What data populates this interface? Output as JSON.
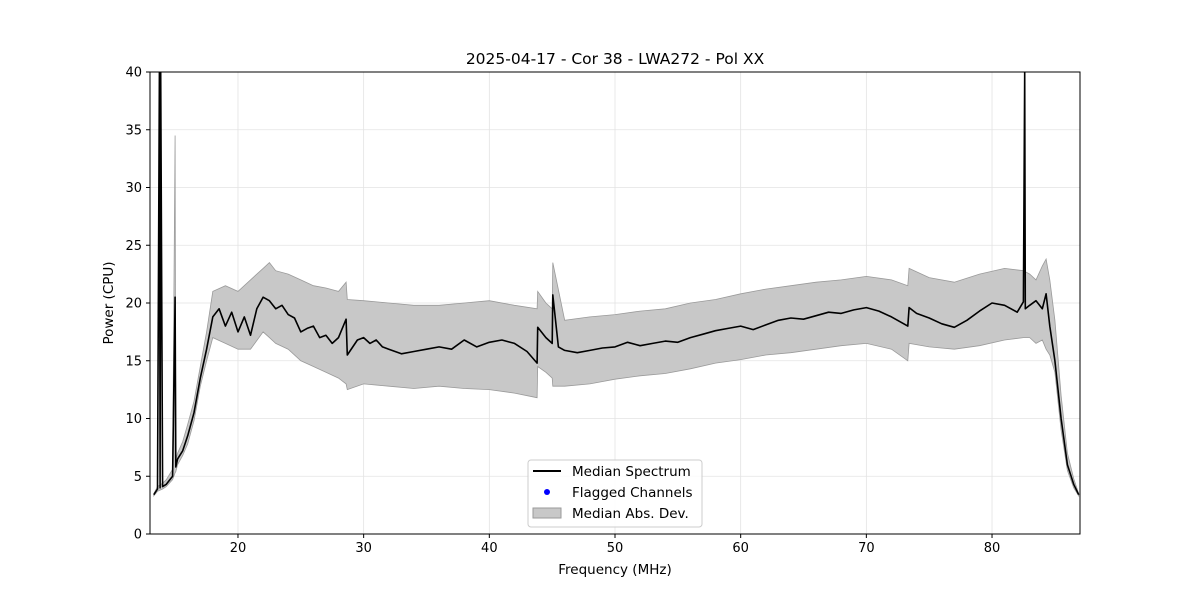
{
  "chart_data": {
    "type": "line",
    "title": "2025-04-17 - Cor 38 - LWA272 - Pol XX",
    "xlabel": "Frequency (MHz)",
    "ylabel": "Power (CPU)",
    "xlim": [
      13,
      87
    ],
    "ylim": [
      0,
      40
    ],
    "xticks": [
      "20",
      "30",
      "40",
      "50",
      "60",
      "70",
      "80"
    ],
    "yticks": [
      "0",
      "5",
      "10",
      "15",
      "20",
      "25",
      "30",
      "35",
      "40"
    ],
    "grid": true,
    "legend_position": "lower center",
    "legend": [
      "Median Spectrum",
      "Flagged Channels",
      "Median Abs. Dev."
    ],
    "colors": {
      "median": "#000000",
      "flagged": "#0000ff",
      "mad_fill": "#c8c8c8",
      "mad_edge": "#9a9a9a"
    },
    "series": [
      {
        "name": "Median Spectrum",
        "x": [
          13.3,
          13.6,
          13.75,
          13.8,
          13.85,
          14.0,
          14.3,
          14.8,
          15.0,
          15.05,
          15.2,
          15.6,
          16.0,
          16.5,
          17.0,
          17.5,
          18.0,
          18.5,
          19.0,
          19.5,
          20.0,
          20.5,
          21.0,
          21.5,
          22.0,
          22.5,
          23.0,
          23.5,
          24.0,
          24.5,
          25.0,
          25.5,
          26.0,
          26.5,
          27.0,
          27.5,
          28.0,
          28.6,
          28.7,
          29.5,
          30.0,
          30.5,
          31.0,
          31.5,
          32.0,
          32.5,
          33.0,
          34.0,
          35.0,
          36.0,
          37.0,
          38.0,
          39.0,
          40.0,
          41.0,
          42.0,
          43.0,
          43.8,
          43.85,
          44.5,
          45.0,
          45.05,
          45.5,
          46.0,
          47.0,
          48.0,
          49.0,
          50.0,
          51.0,
          52.0,
          53.0,
          54.0,
          55.0,
          56.0,
          57.0,
          58.0,
          59.0,
          60.0,
          61.0,
          62.0,
          63.0,
          64.0,
          65.0,
          66.0,
          67.0,
          68.0,
          69.0,
          70.0,
          71.0,
          72.0,
          73.3,
          73.4,
          74.0,
          75.0,
          76.0,
          77.0,
          78.0,
          79.0,
          80.0,
          81.0,
          82.0,
          82.5,
          82.6,
          82.65,
          83.0,
          83.5,
          84.0,
          84.3,
          84.6,
          85.0,
          85.5,
          86.0,
          86.5,
          86.9
        ],
        "y": [
          3.4,
          3.9,
          40.0,
          4.0,
          40.0,
          4.1,
          4.3,
          5.0,
          20.5,
          5.8,
          6.5,
          7.2,
          8.5,
          10.5,
          13.5,
          16.0,
          18.8,
          19.5,
          18.0,
          19.2,
          17.5,
          18.8,
          17.2,
          19.5,
          20.5,
          20.2,
          19.5,
          19.8,
          19.0,
          18.7,
          17.5,
          17.8,
          18.0,
          17.0,
          17.2,
          16.5,
          17.0,
          18.6,
          15.5,
          16.8,
          17.0,
          16.5,
          16.8,
          16.2,
          16.0,
          15.8,
          15.6,
          15.8,
          16.0,
          16.2,
          16.0,
          16.8,
          16.2,
          16.6,
          16.8,
          16.5,
          15.8,
          14.8,
          17.9,
          17.0,
          16.5,
          20.7,
          16.2,
          15.9,
          15.7,
          15.9,
          16.1,
          16.2,
          16.6,
          16.3,
          16.5,
          16.7,
          16.6,
          17.0,
          17.3,
          17.6,
          17.8,
          18.0,
          17.7,
          18.1,
          18.5,
          18.7,
          18.6,
          18.9,
          19.2,
          19.1,
          19.4,
          19.6,
          19.3,
          18.8,
          18.0,
          19.6,
          19.1,
          18.7,
          18.2,
          17.9,
          18.5,
          19.3,
          20.0,
          19.8,
          19.2,
          20.1,
          40.0,
          19.5,
          19.8,
          20.2,
          19.5,
          20.8,
          18.0,
          15.0,
          10.0,
          6.0,
          4.3,
          3.4
        ],
        "color": "#000000"
      },
      {
        "name": "Median Abs. Dev.",
        "x": [
          13.3,
          13.6,
          14.0,
          14.3,
          14.8,
          15.0,
          15.05,
          15.2,
          15.6,
          16.0,
          16.5,
          17.0,
          17.5,
          18.0,
          19.0,
          20.0,
          21.0,
          22.0,
          22.5,
          23.0,
          24.0,
          25.0,
          26.0,
          27.0,
          28.0,
          28.6,
          28.7,
          30.0,
          32.0,
          34.0,
          36.0,
          38.0,
          40.0,
          42.0,
          43.8,
          43.85,
          44.5,
          45.0,
          45.05,
          46.0,
          48.0,
          50.0,
          52.0,
          54.0,
          56.0,
          58.0,
          60.0,
          62.0,
          64.0,
          66.0,
          68.0,
          70.0,
          72.0,
          73.3,
          73.4,
          75.0,
          77.0,
          79.0,
          81.0,
          82.5,
          83.0,
          83.5,
          84.0,
          84.3,
          84.6,
          85.0,
          85.5,
          86.0,
          86.5,
          86.9
        ],
        "upper": [
          3.5,
          4.1,
          4.4,
          4.7,
          5.6,
          34.5,
          6.4,
          7.0,
          8.0,
          9.5,
          11.5,
          14.5,
          17.5,
          21.0,
          21.5,
          21.0,
          22.0,
          23.0,
          23.5,
          22.8,
          22.5,
          22.0,
          21.5,
          21.3,
          21.0,
          21.8,
          20.3,
          20.2,
          20.0,
          19.8,
          19.8,
          20.0,
          20.2,
          19.8,
          19.5,
          21.0,
          20.0,
          19.5,
          23.5,
          18.5,
          18.8,
          19.0,
          19.3,
          19.5,
          20.0,
          20.3,
          20.8,
          21.2,
          21.5,
          21.8,
          22.0,
          22.3,
          22.0,
          21.5,
          23.0,
          22.2,
          21.8,
          22.5,
          23.0,
          22.8,
          22.5,
          22.0,
          23.2,
          23.8,
          22.0,
          18.5,
          12.0,
          7.0,
          4.8,
          3.5
        ],
        "lower": [
          3.3,
          3.7,
          3.9,
          4.1,
          4.7,
          5.3,
          5.4,
          6.0,
          6.8,
          7.8,
          9.8,
          12.8,
          15.0,
          17.0,
          16.5,
          16.0,
          16.0,
          17.5,
          17.0,
          16.5,
          16.0,
          15.0,
          14.5,
          14.0,
          13.5,
          13.0,
          12.5,
          13.0,
          12.8,
          12.6,
          12.8,
          12.6,
          12.5,
          12.2,
          11.8,
          14.5,
          14.0,
          13.5,
          12.8,
          12.8,
          13.0,
          13.4,
          13.7,
          13.9,
          14.3,
          14.8,
          15.1,
          15.5,
          15.7,
          16.0,
          16.3,
          16.5,
          16.0,
          15.0,
          16.5,
          16.2,
          16.0,
          16.3,
          16.8,
          17.0,
          17.0,
          16.5,
          16.8,
          16.0,
          15.5,
          14.0,
          9.0,
          5.5,
          4.0,
          3.3
        ],
        "color": "#c8c8c8"
      }
    ],
    "flagged_channels": []
  }
}
